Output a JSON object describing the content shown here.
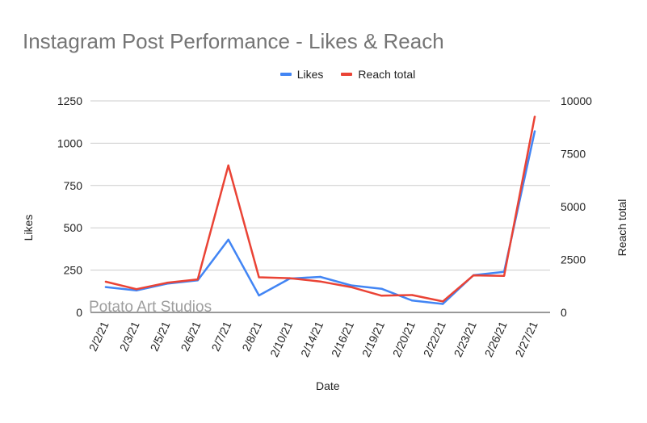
{
  "chart_data": {
    "type": "line",
    "title": "Instagram Post Performance - Likes & Reach",
    "xlabel": "Date",
    "ylabel": "Likes",
    "y2label": "Reach total",
    "watermark": "Potato Art Studios",
    "legend_position": "top-center",
    "grid": true,
    "categories": [
      "2/2/21",
      "2/3/21",
      "2/5/21",
      "2/6/21",
      "2/7/21",
      "2/8/21",
      "2/10/21",
      "2/14/21",
      "2/16/21",
      "2/19/21",
      "2/20/21",
      "2/22/21",
      "2/23/21",
      "2/26/21",
      "2/27/21"
    ],
    "ylim": [
      0,
      1250
    ],
    "yticks": [
      0,
      250,
      500,
      750,
      1000,
      1250
    ],
    "y2lim": [
      0,
      10000
    ],
    "y2ticks": [
      0,
      2500,
      5000,
      7500,
      10000
    ],
    "series": [
      {
        "name": "Likes",
        "axis": "left",
        "color": "#4285f4",
        "values": [
          150,
          130,
          170,
          190,
          430,
          100,
          200,
          210,
          160,
          140,
          70,
          50,
          220,
          240,
          1070
        ]
      },
      {
        "name": "Reach total",
        "axis": "right",
        "color": "#ea4335",
        "values": [
          1450,
          1100,
          1400,
          1560,
          6950,
          1660,
          1620,
          1460,
          1200,
          790,
          820,
          520,
          1750,
          1730,
          9250
        ]
      }
    ]
  }
}
